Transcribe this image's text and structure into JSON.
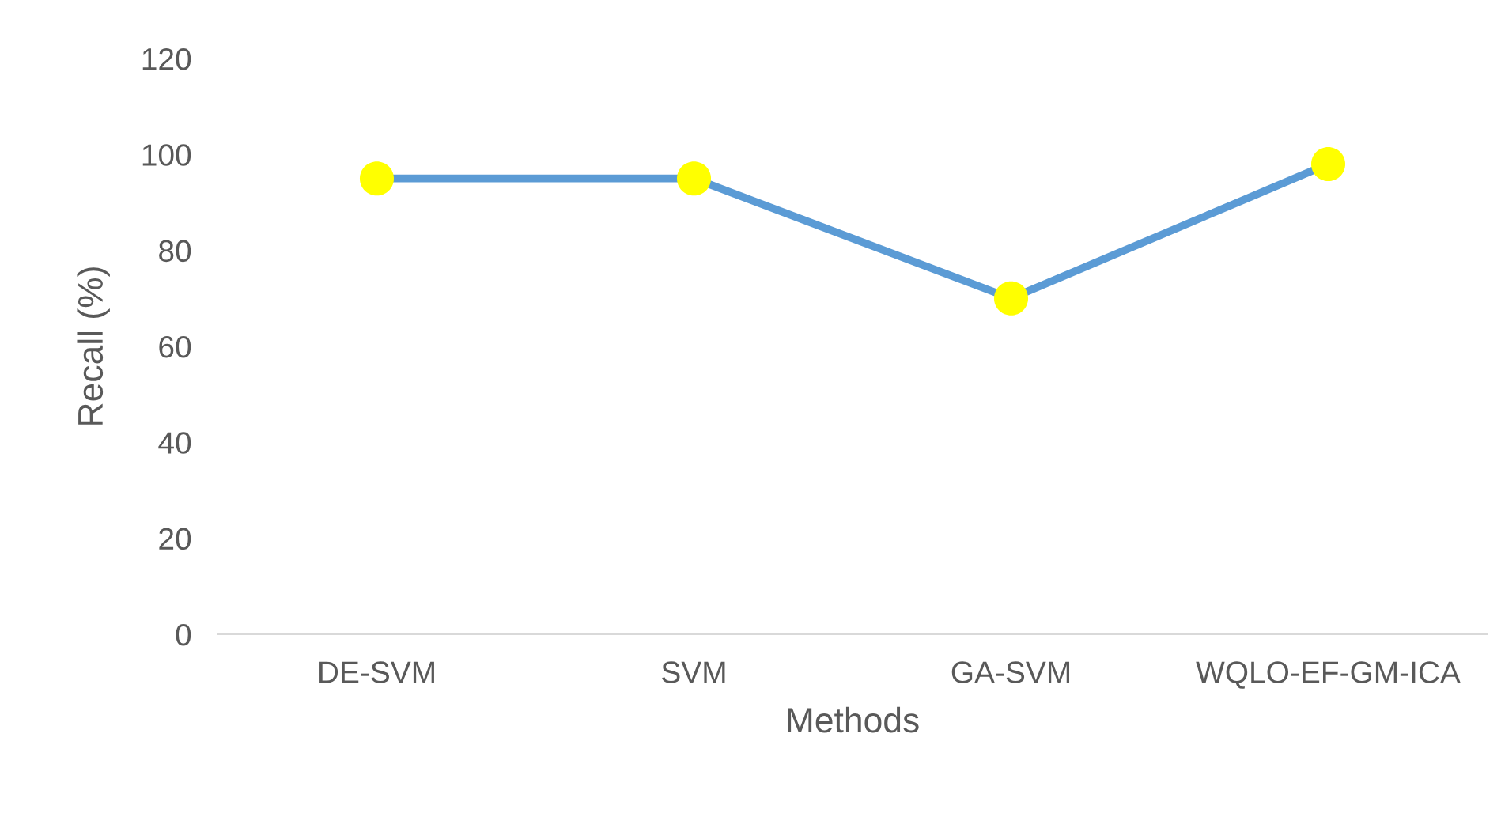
{
  "chart_data": {
    "type": "line",
    "xlabel": "Methods",
    "ylabel": "Recall (%)",
    "categories": [
      "DE-SVM",
      "SVM",
      "GA-SVM",
      "WQLO-EF-GM-ICA"
    ],
    "series": [
      {
        "color": "#5b9bd5",
        "colors": [
          "#ffff00",
          "#ffff00",
          "#ffff00",
          "#ffff00"
        ],
        "values": [
          95,
          95,
          70,
          98
        ]
      }
    ],
    "ylim": [
      0,
      120
    ],
    "yticks": [
      0,
      20,
      40,
      60,
      80,
      100,
      120
    ],
    "grid": false,
    "legend": false,
    "marker": "circle",
    "line_style": "solid"
  }
}
